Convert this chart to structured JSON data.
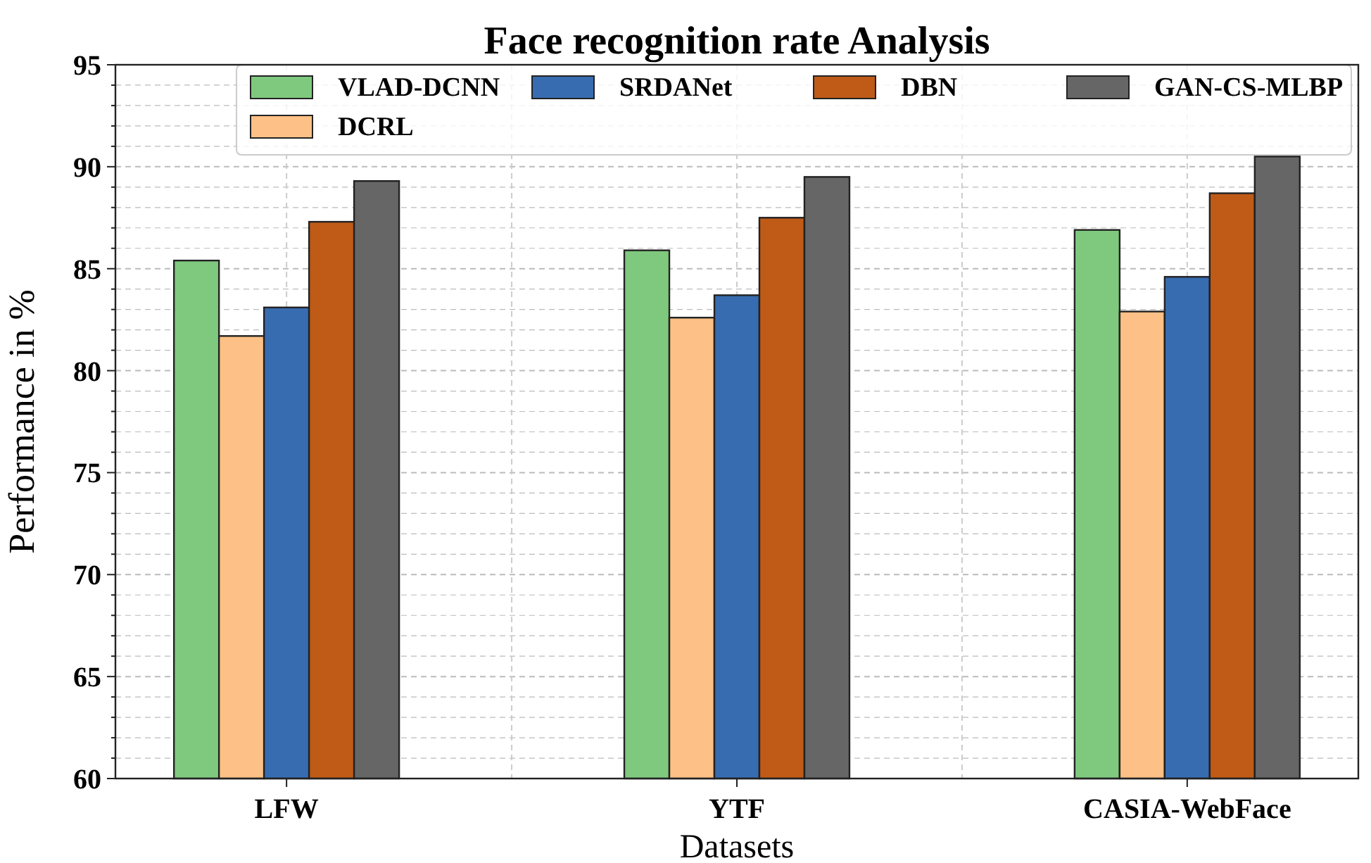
{
  "chart_data": {
    "type": "bar",
    "title": "Face recognition rate Analysis",
    "xlabel": "Datasets",
    "ylabel": "Performance in %",
    "categories": [
      "LFW",
      "YTF",
      "CASIA-WebFace"
    ],
    "series": [
      {
        "name": "VLAD-DCNN",
        "color": "#7fc97f",
        "values": [
          85.4,
          85.9,
          86.9
        ]
      },
      {
        "name": "DCRL",
        "color": "#fdc086",
        "values": [
          81.7,
          82.6,
          82.9
        ]
      },
      {
        "name": "SRDANet",
        "color": "#386cb0",
        "values": [
          83.1,
          83.7,
          84.6
        ]
      },
      {
        "name": "DBN",
        "color": "#bf5b17",
        "values": [
          87.3,
          87.5,
          88.7
        ]
      },
      {
        "name": "GAN-CS-MLBP",
        "color": "#666666",
        "values": [
          89.3,
          89.5,
          90.5
        ]
      }
    ],
    "ylim": [
      60,
      95
    ],
    "yticks": [
      60,
      {
        "value": 61,
        "label": null
      },
      {
        "value": 62,
        "label": null
      },
      {
        "value": 63,
        "label": null
      },
      {
        "value": 64,
        "label": null
      },
      65,
      {
        "value": 66,
        "label": null
      },
      {
        "value": 67,
        "label": null
      },
      {
        "value": 68,
        "label": null
      },
      {
        "value": 69,
        "label": null
      },
      70,
      {
        "value": 71,
        "label": null
      },
      {
        "value": 72,
        "label": null
      },
      {
        "value": 73,
        "label": null
      },
      {
        "value": 74,
        "label": null
      },
      75,
      {
        "value": 76,
        "label": null
      },
      {
        "value": 77,
        "label": null
      },
      {
        "value": 78,
        "label": null
      },
      {
        "value": 79,
        "label": null
      },
      80,
      {
        "value": 81,
        "label": null
      },
      {
        "value": 82,
        "label": null
      },
      {
        "value": 83,
        "label": null
      },
      {
        "value": 84,
        "label": null
      },
      85,
      {
        "value": 86,
        "label": null
      },
      {
        "value": 87,
        "label": null
      },
      {
        "value": 88,
        "label": null
      },
      {
        "value": 89,
        "label": null
      },
      90,
      {
        "value": 91,
        "label": null
      },
      {
        "value": 92,
        "label": null
      },
      {
        "value": 93,
        "label": null
      },
      {
        "value": 94,
        "label": null
      },
      95
    ],
    "grid": true,
    "legend": "top"
  }
}
